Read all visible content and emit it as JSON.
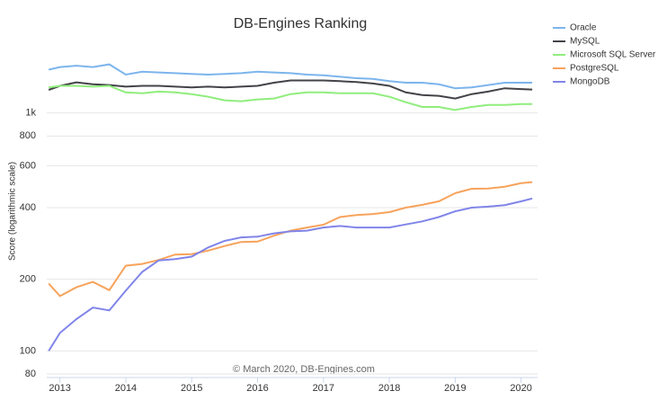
{
  "chart_data": {
    "type": "line",
    "title": "DB-Engines Ranking",
    "ylabel": "Score (logarithmic scale)",
    "credit": "© March 2020, DB-Engines.com",
    "log_y": true,
    "grid": true,
    "legend": "top-right",
    "x": [
      2012.83,
      2013,
      2013.25,
      2013.5,
      2013.75,
      2014,
      2014.25,
      2014.5,
      2014.75,
      2015,
      2015.25,
      2015.5,
      2015.75,
      2016,
      2016.25,
      2016.5,
      2016.75,
      2017,
      2017.25,
      2017.5,
      2017.75,
      2018,
      2018.25,
      2018.5,
      2018.75,
      2019,
      2019.25,
      2019.5,
      2019.75,
      2020,
      2020.17
    ],
    "xlim": [
      2012.8,
      2020.25
    ],
    "xticks": [
      2013,
      2014,
      2015,
      2016,
      2017,
      2018,
      2019,
      2020
    ],
    "ylim": [
      80,
      2000
    ],
    "yticks": [
      80,
      100,
      200,
      400,
      600,
      800,
      {
        "value": 1000,
        "label": "1k"
      }
    ],
    "series": [
      {
        "name": "Oracle",
        "color": "#7cb5ec",
        "values": [
          1520,
          1560,
          1580,
          1560,
          1600,
          1450,
          1490,
          1480,
          1470,
          1460,
          1450,
          1460,
          1470,
          1490,
          1480,
          1470,
          1450,
          1440,
          1420,
          1400,
          1390,
          1360,
          1340,
          1340,
          1320,
          1270,
          1280,
          1310,
          1340,
          1340,
          1340
        ]
      },
      {
        "name": "MySQL",
        "color": "#434348",
        "values": [
          1250,
          1300,
          1345,
          1320,
          1310,
          1290,
          1300,
          1300,
          1290,
          1280,
          1290,
          1280,
          1290,
          1300,
          1340,
          1370,
          1370,
          1370,
          1360,
          1350,
          1330,
          1300,
          1220,
          1190,
          1180,
          1150,
          1200,
          1230,
          1270,
          1260,
          1255
        ]
      },
      {
        "name": "Microsoft SQL Server",
        "color": "#90ed7d",
        "values": [
          1280,
          1300,
          1300,
          1290,
          1300,
          1220,
          1210,
          1230,
          1220,
          1200,
          1170,
          1130,
          1120,
          1140,
          1150,
          1200,
          1220,
          1220,
          1210,
          1210,
          1210,
          1170,
          1110,
          1060,
          1060,
          1030,
          1060,
          1080,
          1080,
          1090,
          1090
        ]
      },
      {
        "name": "PostgreSQL",
        "color": "#f7a35c",
        "values": [
          192,
          170,
          185,
          195,
          180,
          228,
          232,
          241,
          254,
          255,
          264,
          276,
          287,
          288,
          305,
          320,
          330,
          339,
          365,
          372,
          376,
          383,
          400,
          411,
          425,
          460,
          480,
          481,
          490,
          507,
          512
        ]
      },
      {
        "name": "MongoDB",
        "color": "#8085e9",
        "values": [
          100,
          119,
          136,
          152,
          148,
          179,
          215,
          240,
          243,
          249,
          272,
          290,
          300,
          302,
          312,
          318,
          320,
          330,
          335,
          330,
          330,
          330,
          340,
          350,
          365,
          386,
          400,
          404,
          410,
          425,
          437
        ]
      }
    ]
  }
}
